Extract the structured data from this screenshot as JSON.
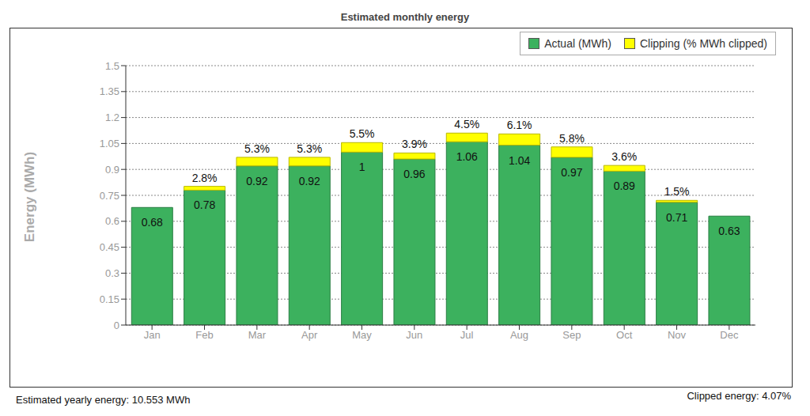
{
  "chart_data": {
    "type": "bar",
    "title": "Estimated monthly energy",
    "y_label": "Energy (MWh)",
    "categories": [
      "Jan",
      "Feb",
      "Mar",
      "Apr",
      "May",
      "Jun",
      "Jul",
      "Aug",
      "Sep",
      "Oct",
      "Nov",
      "Dec"
    ],
    "stacked": true,
    "grid": true,
    "legend": "upper right",
    "series": [
      {
        "name": "Actual (MWh)",
        "color": "#3cb15e",
        "data_labels": true,
        "values": [
          0.68,
          0.78,
          0.92,
          0.92,
          1,
          0.96,
          1.06,
          1.04,
          0.97,
          0.89,
          0.71,
          0.63
        ]
      },
      {
        "name": "Clipping (% MWh clipped)",
        "color": "#ffff00",
        "values": [
          0,
          0.022,
          0.05,
          0.05,
          0.055,
          0.035,
          0.05,
          0.065,
          0.06,
          0.033,
          0.011,
          0
        ],
        "percent_labels": [
          null,
          "2.8%",
          "5.3%",
          "5.3%",
          "5.5%",
          "3.9%",
          "4.5%",
          "6.1%",
          "5.8%",
          "3.6%",
          "1.5%",
          null
        ]
      }
    ],
    "ylim": [
      0,
      1.5
    ],
    "yticks": [
      0,
      0.15,
      0.3,
      0.45,
      0.6,
      0.75,
      0.9,
      1.05,
      1.2,
      1.35,
      1.5
    ],
    "footnotes": {
      "left": "Estimated yearly energy: 10.553 MWh",
      "right": "Clipped energy: 4.07%"
    }
  }
}
